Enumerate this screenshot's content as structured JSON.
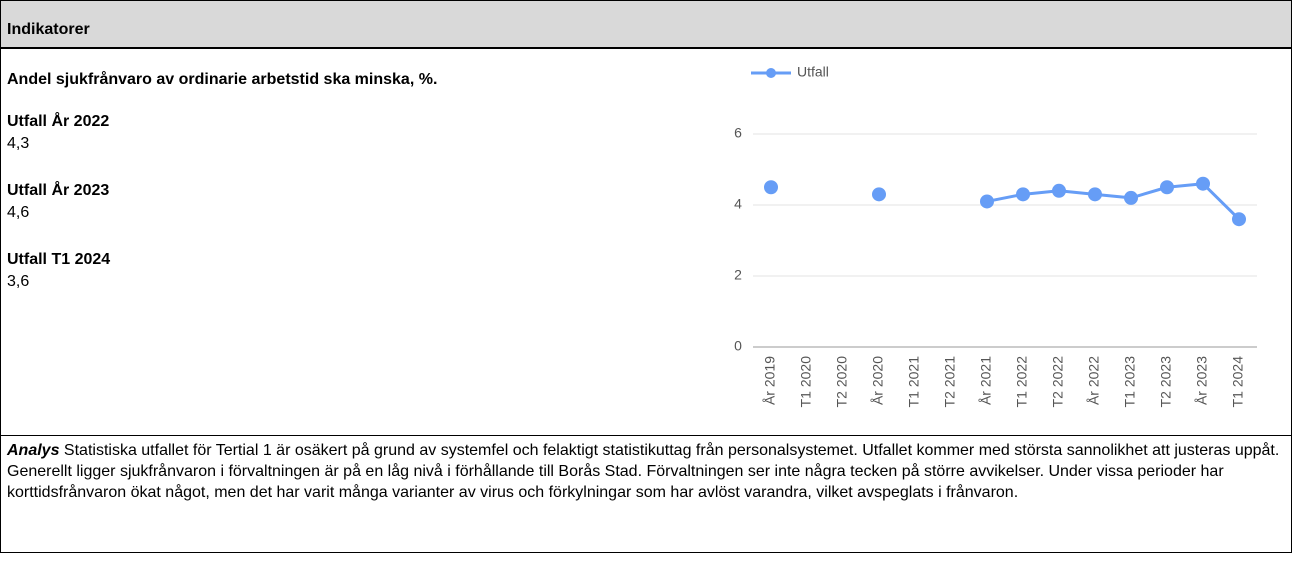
{
  "header": {
    "title": "Indikatorer"
  },
  "indicator": {
    "title": "Andel sjukfrånvaro av ordinarie arbetstid ska minska, %.",
    "items": [
      {
        "label": "Utfall År 2022",
        "value": "4,3"
      },
      {
        "label": "Utfall År 2023",
        "value": "4,6"
      },
      {
        "label": "Utfall T1 2024",
        "value": "3,6"
      }
    ]
  },
  "chart_data": {
    "type": "line",
    "categories": [
      "År 2019",
      "T1 2020",
      "T2 2020",
      "År 2020",
      "T1 2021",
      "T2 2021",
      "År 2021",
      "T1 2022",
      "T2 2022",
      "År 2022",
      "T1 2023",
      "T2 2023",
      "År 2023",
      "T1 2024"
    ],
    "series": [
      {
        "name": "Utfall",
        "color": "#669df6",
        "values": [
          4.5,
          null,
          null,
          4.3,
          null,
          null,
          4.1,
          4.3,
          4.4,
          4.3,
          4.2,
          4.5,
          4.6,
          3.6
        ]
      }
    ],
    "ylim": [
      0,
      6
    ],
    "yticks": [
      0,
      2,
      4,
      6
    ],
    "grid": true,
    "legend": "top"
  },
  "analysis": {
    "label": "Analys",
    "text": "Statistiska utfallet för Tertial 1 är osäkert på grund av systemfel och felaktigt statistikuttag från personalsystemet. Utfallet kommer med största sannolikhet att justeras uppåt. Generellt ligger sjukfrånvaron i förvaltningen är på en låg nivå i förhållande till Borås Stad. Förvaltningen ser inte några tecken på större avvikelser. Under vissa perioder har korttidsfrånvaron ökat något, men det har varit många varianter av virus och förkylningar som har avlöst varandra, vilket avspeglats i frånvaron."
  }
}
